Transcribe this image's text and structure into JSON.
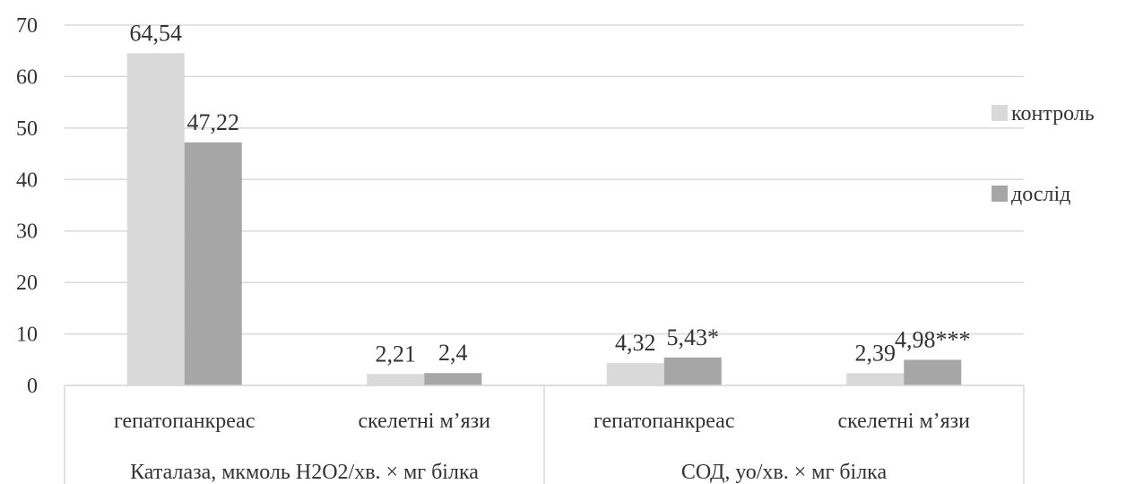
{
  "chart_data": {
    "type": "bar",
    "title": "",
    "xlabel": "",
    "ylabel": "",
    "ylim": [
      0,
      70
    ],
    "yticks": [
      "0",
      "10",
      "20",
      "30",
      "40",
      "50",
      "60",
      "70"
    ],
    "grid": true,
    "legend_position": "right",
    "groups": [
      {
        "label": "Каталаза, мкмоль Н2О2/хв. × мг білка",
        "categories": [
          "гепатопанкреас",
          "скелетні м’язи"
        ]
      },
      {
        "label": "СОД, уо/хв. × мг білка",
        "categories": [
          "гепатопанкреас",
          "скелетні м’язи"
        ]
      }
    ],
    "categories": [
      "гепатопанкреас",
      "скелетні м’язи",
      "гепатопанкреас",
      "скелетні м’язи"
    ],
    "series": [
      {
        "name": "контроль",
        "color": "#d9d9d9",
        "values": [
          64.54,
          2.21,
          4.32,
          2.39
        ],
        "labels": [
          "64,54",
          "2,21",
          "4,32",
          "2,39"
        ]
      },
      {
        "name": "дослід",
        "color": "#a6a6a6",
        "values": [
          47.22,
          2.4,
          5.43,
          4.98
        ],
        "labels": [
          "47,22",
          "2,4",
          "5,43*",
          "4,98***"
        ]
      }
    ]
  }
}
